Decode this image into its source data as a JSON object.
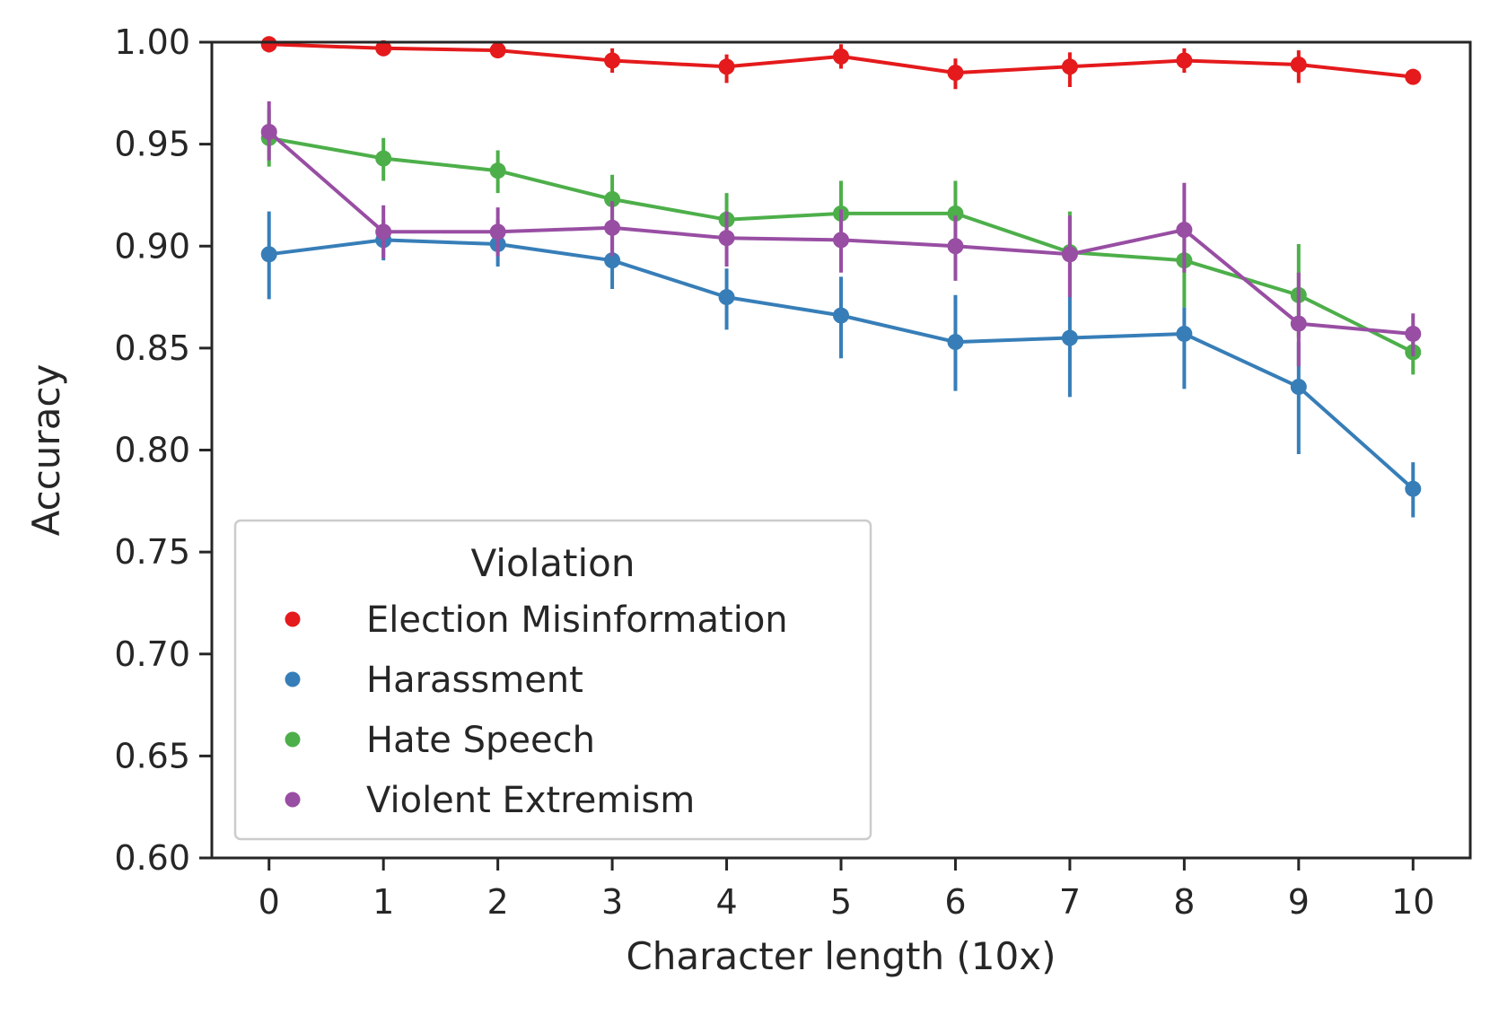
{
  "chart_data": {
    "type": "line",
    "xlabel": "Character length (10x)",
    "ylabel": "Accuracy",
    "categories": [
      "0",
      "1",
      "2",
      "3",
      "4",
      "5",
      "6",
      "7",
      "8",
      "9",
      "10"
    ],
    "ylim": [
      0.6,
      1.0
    ],
    "yticks": [
      "0.60",
      "0.65",
      "0.70",
      "0.75",
      "0.80",
      "0.85",
      "0.90",
      "0.95",
      "1.00"
    ],
    "grid": false,
    "legend": {
      "title": "Violation",
      "placement": "lower-left"
    },
    "error_bars": true,
    "series": [
      {
        "name": "Election Misinformation",
        "color": "#e41a1c",
        "values": [
          0.999,
          0.997,
          0.996,
          0.991,
          0.988,
          0.993,
          0.985,
          0.988,
          0.991,
          0.989,
          0.983
        ],
        "err_low": [
          0.995,
          0.995,
          0.993,
          0.985,
          0.98,
          0.987,
          0.977,
          0.978,
          0.985,
          0.98,
          0.983
        ],
        "err_high": [
          1.002,
          0.999,
          0.999,
          0.997,
          0.994,
          0.999,
          0.992,
          0.995,
          0.997,
          0.996,
          0.983
        ]
      },
      {
        "name": "Harassment",
        "color": "#377eb8",
        "values": [
          0.896,
          0.903,
          0.901,
          0.893,
          0.875,
          0.866,
          0.853,
          0.855,
          0.857,
          0.831,
          0.781
        ],
        "err_low": [
          0.874,
          0.893,
          0.89,
          0.879,
          0.859,
          0.845,
          0.829,
          0.826,
          0.83,
          0.798,
          0.767
        ],
        "err_high": [
          0.917,
          0.913,
          0.913,
          0.907,
          0.889,
          0.885,
          0.876,
          0.876,
          0.87,
          0.853,
          0.794
        ]
      },
      {
        "name": "Hate Speech",
        "color": "#4daf4a",
        "values": [
          0.953,
          0.943,
          0.937,
          0.923,
          0.913,
          0.916,
          0.916,
          0.897,
          0.893,
          0.876,
          0.848
        ],
        "err_low": [
          0.939,
          0.932,
          0.926,
          0.91,
          0.9,
          0.9,
          0.9,
          0.876,
          0.87,
          0.855,
          0.837
        ],
        "err_high": [
          0.967,
          0.953,
          0.947,
          0.935,
          0.926,
          0.932,
          0.932,
          0.917,
          0.912,
          0.901,
          0.859
        ]
      },
      {
        "name": "Violent Extremism",
        "color": "#984ea3",
        "values": [
          0.956,
          0.907,
          0.907,
          0.909,
          0.904,
          0.903,
          0.9,
          0.896,
          0.908,
          0.862,
          0.857
        ],
        "err_low": [
          0.942,
          0.894,
          0.895,
          0.895,
          0.89,
          0.887,
          0.883,
          0.875,
          0.887,
          0.841,
          0.846
        ],
        "err_high": [
          0.971,
          0.92,
          0.919,
          0.922,
          0.917,
          0.918,
          0.915,
          0.915,
          0.931,
          0.887,
          0.867
        ]
      }
    ]
  }
}
